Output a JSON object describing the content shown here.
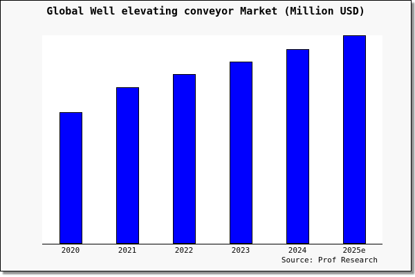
{
  "title": "Global Well elevating conveyor Market (Million USD)",
  "source_note": "Source: Prof Research",
  "colors": {
    "canvas_background": "#f8f8f8",
    "plot_background": "#ffffff",
    "frame_border": "#000000",
    "frame_shadow": "#8f8f8f",
    "bar_fill": "#0000ff",
    "bar_border": "#000000",
    "text": "#000000"
  },
  "chart_data": {
    "type": "bar",
    "title": "Global Well elevating conveyor Market (Million USD)",
    "categories": [
      "2020",
      "2021",
      "2022",
      "2023",
      "2024",
      "2025e"
    ],
    "values": [
      63,
      75,
      81.5,
      87.5,
      93.5,
      100
    ],
    "value_scale_note": "no y-axis scale shown; values are relative with 2025e = 100",
    "series_name": "Global Well elevating conveyor Market",
    "xlabel": "",
    "ylabel": "",
    "ylim": [
      0,
      100
    ],
    "y_axis_ticks": "none",
    "grid": false,
    "legend": "none",
    "bar_color": "#0000ff",
    "source_note": "Source: Prof Research"
  }
}
